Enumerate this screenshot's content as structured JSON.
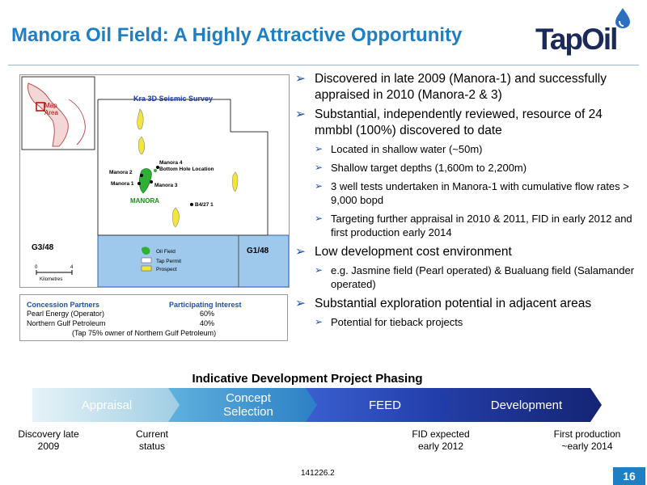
{
  "slide": {
    "title": "Manora Oil Field: A Highly Attractive Opportunity",
    "page_number": "16",
    "footer_code": "141226.2"
  },
  "logo": {
    "text": "TapOil"
  },
  "map": {
    "survey_title": "Kra 3D Seismic Survey",
    "inset_label": "Map\nArea",
    "blocks": {
      "left": "G3/48",
      "right": "G1/48"
    },
    "wells": {
      "manora2": "Manora 2",
      "manora1": "Manora 1",
      "manora4": "Manora 4\nBottom Hole Location",
      "manora3": "Manora 3",
      "b4": "B4/27 1"
    },
    "field_label": "MANORA",
    "legend": {
      "oil_field": "Oil Field",
      "tap_permit": "Tap Permit",
      "prospect": "Prospect"
    },
    "scale": {
      "zero": "0",
      "four": "4",
      "unit": "Kilometres"
    }
  },
  "partners": {
    "header_partners": "Concession Partners",
    "header_interest": "Participating Interest",
    "rows": [
      {
        "name": "Pearl Energy  (Operator)",
        "interest": "60%"
      },
      {
        "name": "Northern Gulf Petroleum",
        "interest": "40%"
      }
    ],
    "note": "(Tap 75% owner of Northern Gulf Petroleum)"
  },
  "bullets": [
    {
      "level": 1,
      "text": "Discovered in late 2009 (Manora-1) and successfully appraised in 2010 (Manora-2 & 3)"
    },
    {
      "level": 1,
      "text": "Substantial, independently reviewed, resource of 24 mmbbl (100%) discovered to date"
    },
    {
      "level": 2,
      "text": "Located in shallow water (~50m)"
    },
    {
      "level": 2,
      "text": "Shallow target depths (1,600m to 2,200m)"
    },
    {
      "level": 2,
      "text": "3 well tests undertaken in Manora-1 with cumulative flow rates > 9,000 bopd"
    },
    {
      "level": 2,
      "text": "Targeting further appraisal in 2010 & 2011, FID in early 2012 and first production early 2014"
    },
    {
      "level": 1,
      "text": "Low development cost environment"
    },
    {
      "level": 2,
      "text": "e.g. Jasmine field (Pearl operated) & Bualuang field (Salamander operated)"
    },
    {
      "level": 1,
      "text": "Substantial exploration potential in adjacent areas"
    },
    {
      "level": 2,
      "text": "Potential for tieback projects"
    }
  ],
  "phasing": {
    "title": "Indicative Development Project Phasing",
    "phases": [
      {
        "label": "Appraisal",
        "color": "#b9dcea"
      },
      {
        "label": "Concept\nSelection",
        "color": "#3d93cf"
      },
      {
        "label": "FEED",
        "color": "#2848b4"
      },
      {
        "label": "Development",
        "color": "#1a2f8e"
      }
    ],
    "milestones": [
      "Discovery late\n2009",
      "Current\nstatus",
      "FID expected\nearly 2012",
      "First production\n~early 2014"
    ]
  }
}
